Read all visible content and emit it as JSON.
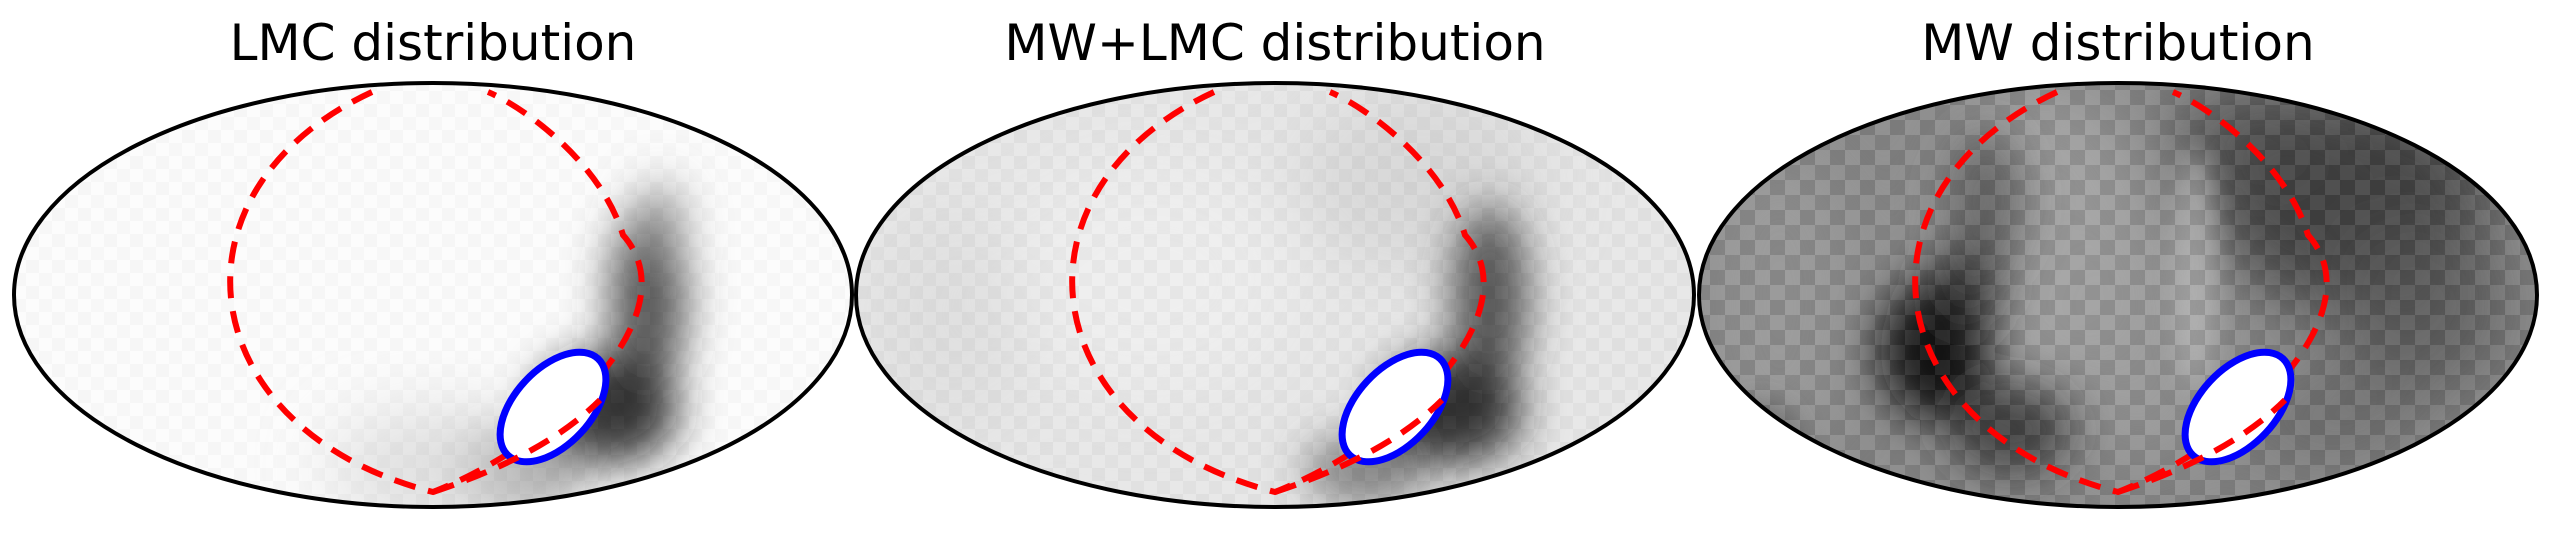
{
  "figure": {
    "panels": [
      {
        "title": "LMC distribution",
        "map": "lmc"
      },
      {
        "title": "MW+LMC distribution",
        "map": "combined"
      },
      {
        "title": "MW distribution",
        "map": "mw"
      }
    ]
  },
  "chart_data": {
    "type": "heatmap",
    "projection": "hammer-aitoff",
    "colormap": "grayscale (white = low density, black = high density)",
    "panels": [
      {
        "title": "LMC distribution"
      },
      {
        "title": "MW+LMC distribution"
      },
      {
        "title": "MW distribution"
      }
    ],
    "overlays": {
      "dashed_curve": {
        "color": "#ff0000",
        "style": "dashed"
      },
      "solid_ellipse": {
        "color": "#0000ff",
        "style": "solid",
        "interior": "#ffffff"
      }
    }
  }
}
